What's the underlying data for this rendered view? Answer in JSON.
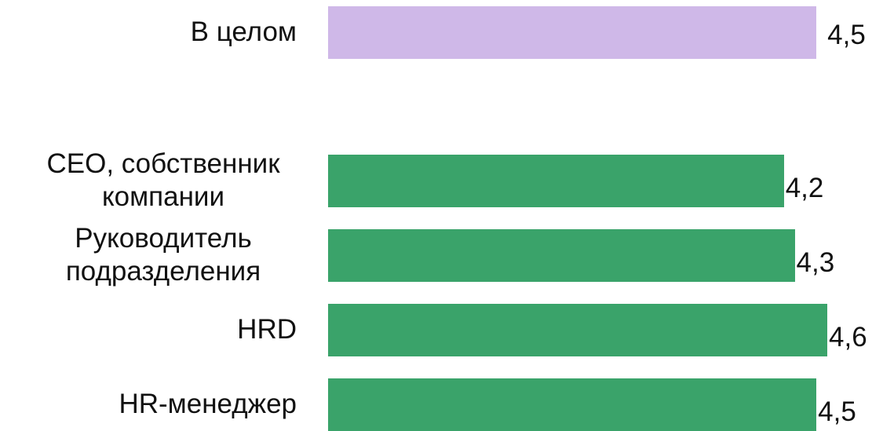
{
  "chart_data": {
    "type": "bar",
    "orientation": "horizontal",
    "categories": [
      "В целом",
      "СЕО, собственник компании",
      "Руководитель подразделения",
      "HRD",
      "HR-менеджер"
    ],
    "values": [
      4.5,
      4.2,
      4.3,
      4.6,
      4.5
    ],
    "value_labels": [
      "4,5",
      "4,2",
      "4,3",
      "4,6",
      "4,5"
    ],
    "colors": [
      "#cfb8e8",
      "#3aa36a",
      "#3aa36a",
      "#3aa36a",
      "#3aa36a"
    ]
  }
}
